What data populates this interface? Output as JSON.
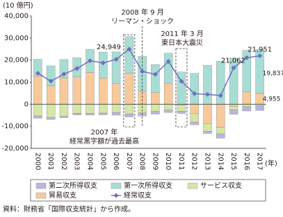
{
  "chart_data": {
    "type": "bar",
    "y_unit": "(10 億円)",
    "x_unit": "(年)",
    "categories": [
      "2000",
      "2001",
      "2002",
      "2003",
      "2004",
      "2005",
      "2006",
      "2007",
      "2008",
      "2009",
      "2010",
      "2011",
      "2012",
      "2013",
      "2014",
      "2015",
      "2016",
      "2017"
    ],
    "series": [
      {
        "name": "第二次所得収支",
        "color": "#b8b6e0",
        "values": [
          -1060,
          -1018,
          -576,
          -709,
          -810,
          -771,
          -1214,
          -1410,
          -1372,
          -1263,
          -1072,
          -1108,
          -1245,
          -1000,
          -1939,
          -1984,
          -1926,
          -2141
        ]
      },
      {
        "name": "第一次所得収支",
        "color": "#a8ddd5",
        "values": [
          7691,
          8986,
          8399,
          8627,
          10395,
          11864,
          14228,
          16495,
          15840,
          12637,
          13597,
          14621,
          13991,
          17650,
          19438,
          20955,
          18895,
          19837
        ],
        "value_labels": [
          null,
          null,
          null,
          null,
          null,
          null,
          null,
          null,
          null,
          null,
          null,
          null,
          null,
          null,
          null,
          null,
          null,
          "19,837"
        ]
      },
      {
        "name": "サービス収支",
        "color": "#d5e6a6",
        "values": [
          -5268,
          -5917,
          -5510,
          -4138,
          -4092,
          -4006,
          -3704,
          -4336,
          -3925,
          -3212,
          -2672,
          -2790,
          -3811,
          -3479,
          -3008,
          -1692,
          -1107,
          -700
        ]
      },
      {
        "name": "貿易収支",
        "color": "#f8c99a",
        "values": [
          12698,
          8401,
          11850,
          12412,
          14423,
          11770,
          9464,
          14186,
          5890,
          5339,
          9516,
          -331,
          -4272,
          -8775,
          -10416,
          -877,
          5518,
          4955
        ],
        "value_labels": [
          null,
          null,
          null,
          null,
          null,
          null,
          null,
          null,
          null,
          null,
          null,
          null,
          null,
          null,
          null,
          null,
          null,
          "4,955"
        ]
      },
      {
        "name": "経常収支",
        "type": "line",
        "color": "#6c6fc2",
        "values": [
          14062,
          10452,
          13641,
          16193,
          19696,
          18726,
          20349,
          24949,
          14880,
          13545,
          19382,
          10401,
          4764,
          4449,
          3929,
          16519,
          21062,
          21951
        ],
        "value_labels": [
          null,
          null,
          null,
          null,
          null,
          null,
          null,
          "24,949",
          null,
          null,
          null,
          null,
          null,
          null,
          null,
          null,
          "21,062",
          "21,951"
        ]
      }
    ],
    "ylim": [
      -20000,
      40000
    ],
    "yticks": [
      {
        "value": -20000,
        "label": "-20,000"
      },
      {
        "value": -10000,
        "label": "-10,000"
      },
      0,
      {
        "value": 10000,
        "label": "10,000"
      },
      {
        "value": 20000,
        "label": "20,000"
      },
      {
        "value": 30000,
        "label": "30,000"
      },
      {
        "value": 40000,
        "label": "40,000"
      }
    ],
    "annotations": [
      "2008 年 9 月",
      "リーマン・ショック",
      "2011 年 3 月",
      "東日本大震災",
      "2007 年",
      "経常黒字額が過去最高"
    ],
    "source": "資料：財務省「国際収支統計」から作成。"
  }
}
